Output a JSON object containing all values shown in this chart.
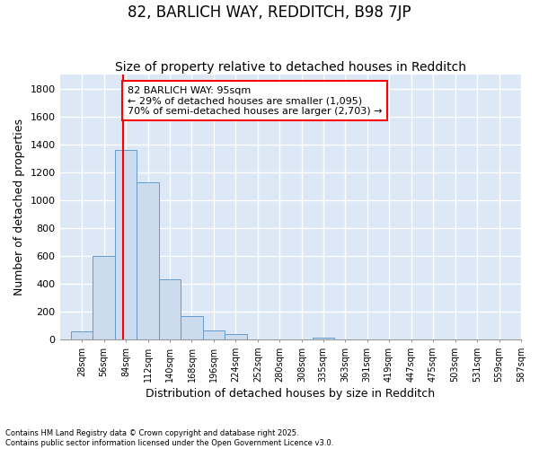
{
  "title": "82, BARLICH WAY, REDDITCH, B98 7JP",
  "subtitle": "Size of property relative to detached houses in Redditch",
  "xlabel": "Distribution of detached houses by size in Redditch",
  "ylabel": "Number of detached properties",
  "footnote1": "Contains HM Land Registry data © Crown copyright and database right 2025.",
  "footnote2": "Contains public sector information licensed under the Open Government Licence v3.0.",
  "annotation_line1": "82 BARLICH WAY: 95sqm",
  "annotation_line2": "← 29% of detached houses are smaller (1,095)",
  "annotation_line3": "70% of semi-detached houses are larger (2,703) →",
  "property_sqm": 95,
  "bar_color": "#ccdcee",
  "bar_edge_color": "#6699cc",
  "vline_color": "red",
  "annotation_box_edge_color": "red",
  "annotation_box_face_color": "white",
  "bins": [
    28,
    56,
    84,
    112,
    140,
    168,
    196,
    224,
    252,
    280,
    308,
    335,
    363,
    391,
    419,
    447,
    475,
    503,
    531,
    559,
    587
  ],
  "bin_labels": [
    "28sqm",
    "56sqm",
    "84sqm",
    "112sqm",
    "140sqm",
    "168sqm",
    "196sqm",
    "224sqm",
    "252sqm",
    "280sqm",
    "308sqm",
    "335sqm",
    "363sqm",
    "391sqm",
    "419sqm",
    "447sqm",
    "475sqm",
    "503sqm",
    "531sqm",
    "559sqm",
    "587sqm"
  ],
  "values": [
    60,
    600,
    1360,
    1130,
    430,
    170,
    65,
    35,
    0,
    0,
    0,
    10,
    0,
    0,
    0,
    0,
    0,
    0,
    0,
    0
  ],
  "ylim": [
    0,
    1900
  ],
  "yticks": [
    0,
    200,
    400,
    600,
    800,
    1000,
    1200,
    1400,
    1600,
    1800
  ],
  "background_color": "#dce8f5",
  "title_fontsize": 12,
  "subtitle_fontsize": 10,
  "ylabel_fontsize": 9,
  "xlabel_fontsize": 9,
  "tick_labelsize": 8,
  "grid_color": "white",
  "figsize": [
    6.0,
    5.0
  ],
  "dpi": 100
}
